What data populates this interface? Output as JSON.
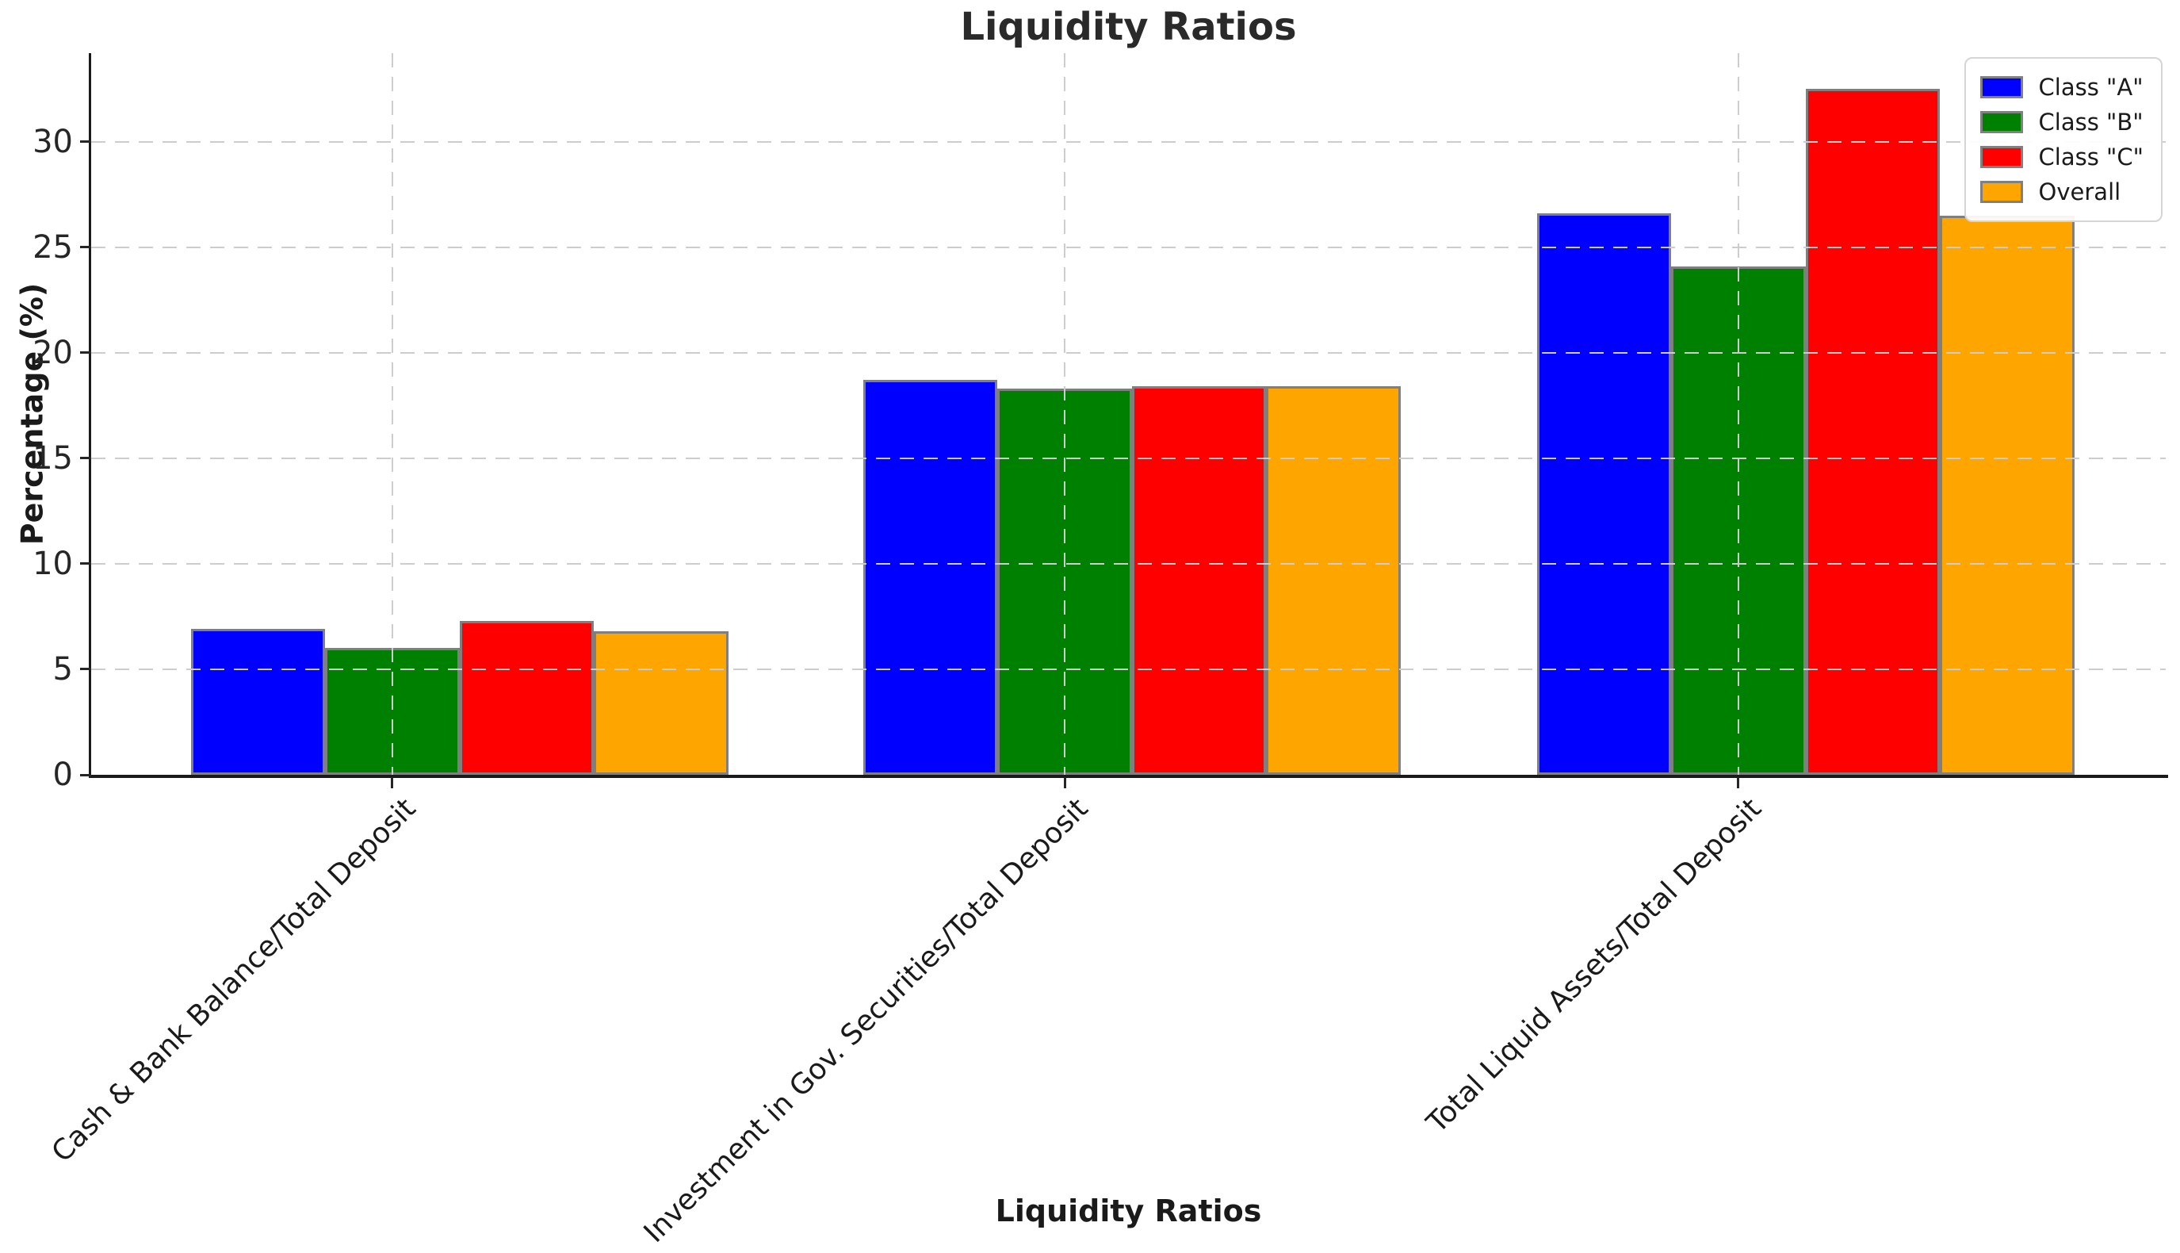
{
  "title": "Liquidity Ratios",
  "axes": {
    "y_label": "Percentage (%)",
    "x_label": "Liquidity Ratios"
  },
  "colors": {
    "class_a": "#0000FF",
    "class_b": "#008000",
    "class_c": "#FF0000",
    "overall": "#FFA500",
    "bar_edge": "#7f7f7f",
    "gridline": "#cdcdcd",
    "spine": "#1a1a1a"
  },
  "chart_data": {
    "type": "bar",
    "title": "Liquidity Ratios",
    "xlabel": "Liquidity Ratios",
    "ylabel": "Percentage (%)",
    "ylim": [
      0,
      34.2
    ],
    "yticks": [
      0,
      5,
      10,
      15,
      20,
      25,
      30
    ],
    "grid": true,
    "grid_style": "dashed",
    "legend_position": "upper right",
    "categories": [
      "Cash & Bank Balance/Total Deposit",
      "Investment in Gov. Securities/Total Deposit",
      "Total Liquid Assets/Total Deposit"
    ],
    "series": [
      {
        "name": "Class \"A\"",
        "color": "#0000FF",
        "values": [
          6.9,
          18.7,
          26.6
        ]
      },
      {
        "name": "Class \"B\"",
        "color": "#008000",
        "values": [
          6.0,
          18.3,
          24.1
        ]
      },
      {
        "name": "Class \"C\"",
        "color": "#FF0000",
        "values": [
          7.3,
          18.4,
          32.5
        ]
      },
      {
        "name": "Overall",
        "color": "#FFA500",
        "values": [
          6.8,
          18.4,
          26.5
        ]
      }
    ]
  }
}
